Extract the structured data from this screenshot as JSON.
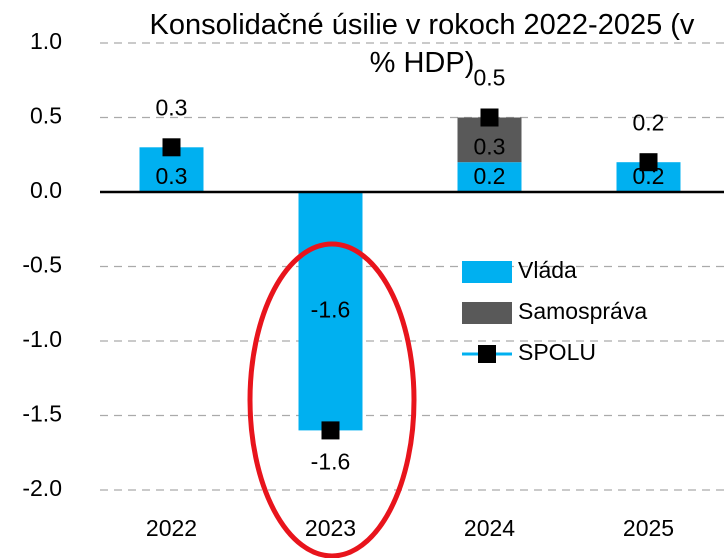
{
  "chart_data": {
    "type": "bar",
    "stacked": true,
    "title": "Konsolidačné úsilie v rokoch 2022-2025 (v % HDP)",
    "categories": [
      "2022",
      "2023",
      "2024",
      "2025"
    ],
    "series": [
      {
        "name": "Vláda",
        "type": "bar",
        "color": "#00b0f0",
        "values": [
          0.3,
          -1.6,
          0.2,
          0.2
        ]
      },
      {
        "name": "Samospráva",
        "type": "bar",
        "color": "#595959",
        "values": [
          null,
          null,
          0.3,
          null
        ]
      },
      {
        "name": "SPOLU",
        "type": "marker",
        "color": "#000000",
        "values": [
          0.3,
          -1.6,
          0.5,
          0.2
        ]
      }
    ],
    "ylim": [
      -2.0,
      1.0
    ],
    "yticks": [
      {
        "value": -2.0,
        "label": "-2.0"
      },
      {
        "value": -1.5,
        "label": "-1.5"
      },
      {
        "value": -1.0,
        "label": "-1.0"
      },
      {
        "value": -0.5,
        "label": "-0.5"
      },
      {
        "value": 0.0,
        "label": "0.0"
      },
      {
        "value": 0.5,
        "label": "0.5"
      },
      {
        "value": 1.0,
        "label": "1.0"
      }
    ],
    "grid": true,
    "legend": "right"
  }
}
